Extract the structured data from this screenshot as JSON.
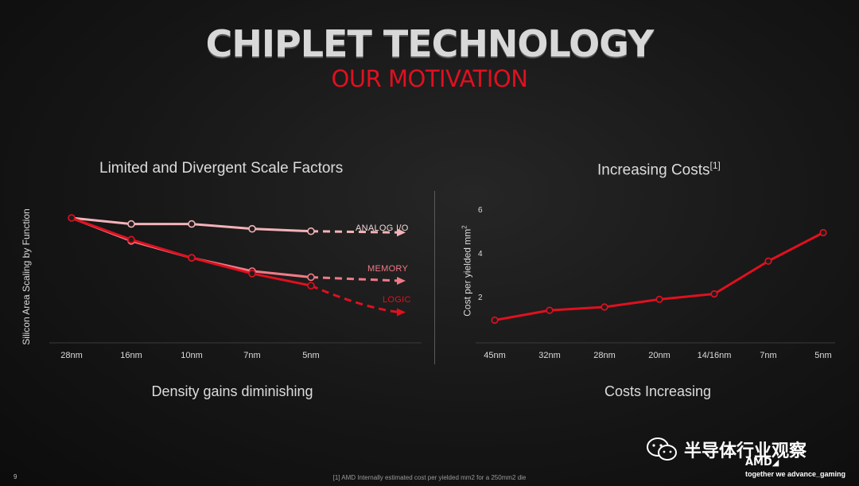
{
  "header": {
    "title": "CHIPLET TECHNOLOGY",
    "subtitle": "OUR MOTIVATION"
  },
  "colors": {
    "accent_red": "#e0101f",
    "memory_pink": "#f07a86",
    "analog_pink": "#f3b3b8"
  },
  "chart_data": [
    {
      "type": "line",
      "title": "Limited and Divergent Scale Factors",
      "xlabel": "Density gains diminishing",
      "ylabel": "Silicon Area Scaling by Function",
      "categories": [
        "28nm",
        "16nm",
        "10nm",
        "7nm",
        "5nm"
      ],
      "ylim": [
        0,
        1
      ],
      "series": [
        {
          "name": "ANALOG I/O",
          "values": [
            1.0,
            0.95,
            0.95,
            0.91,
            0.89
          ],
          "projection": 0.88
        },
        {
          "name": "MEMORY",
          "values": [
            1.0,
            0.81,
            0.67,
            0.56,
            0.51
          ],
          "projection": 0.48
        },
        {
          "name": "LOGIC",
          "values": [
            1.0,
            0.82,
            0.67,
            0.54,
            0.44
          ],
          "projection": 0.22
        }
      ]
    },
    {
      "type": "line",
      "title": "Increasing Costs",
      "title_ref": "[1]",
      "xlabel": "Costs Increasing",
      "ylabel": "Cost per yielded mm",
      "ylabel_sup": "2",
      "categories": [
        "45nm",
        "32nm",
        "28nm",
        "20nm",
        "14/16nm",
        "7nm",
        "5nm"
      ],
      "yticks": [
        "2",
        "4",
        "6"
      ],
      "ylim": [
        0,
        6
      ],
      "series": [
        {
          "name": "Cost",
          "values": [
            1.0,
            1.45,
            1.6,
            1.95,
            2.2,
            3.7,
            5.0
          ]
        }
      ]
    }
  ],
  "footer": {
    "page_number": "9",
    "footnote": "[1] AMD Internally estimated cost per yielded mm2 for a 250mm2 die",
    "watermark": "半导体行业观察",
    "brand": "AMD",
    "tagline": "together we advance_gaming"
  }
}
